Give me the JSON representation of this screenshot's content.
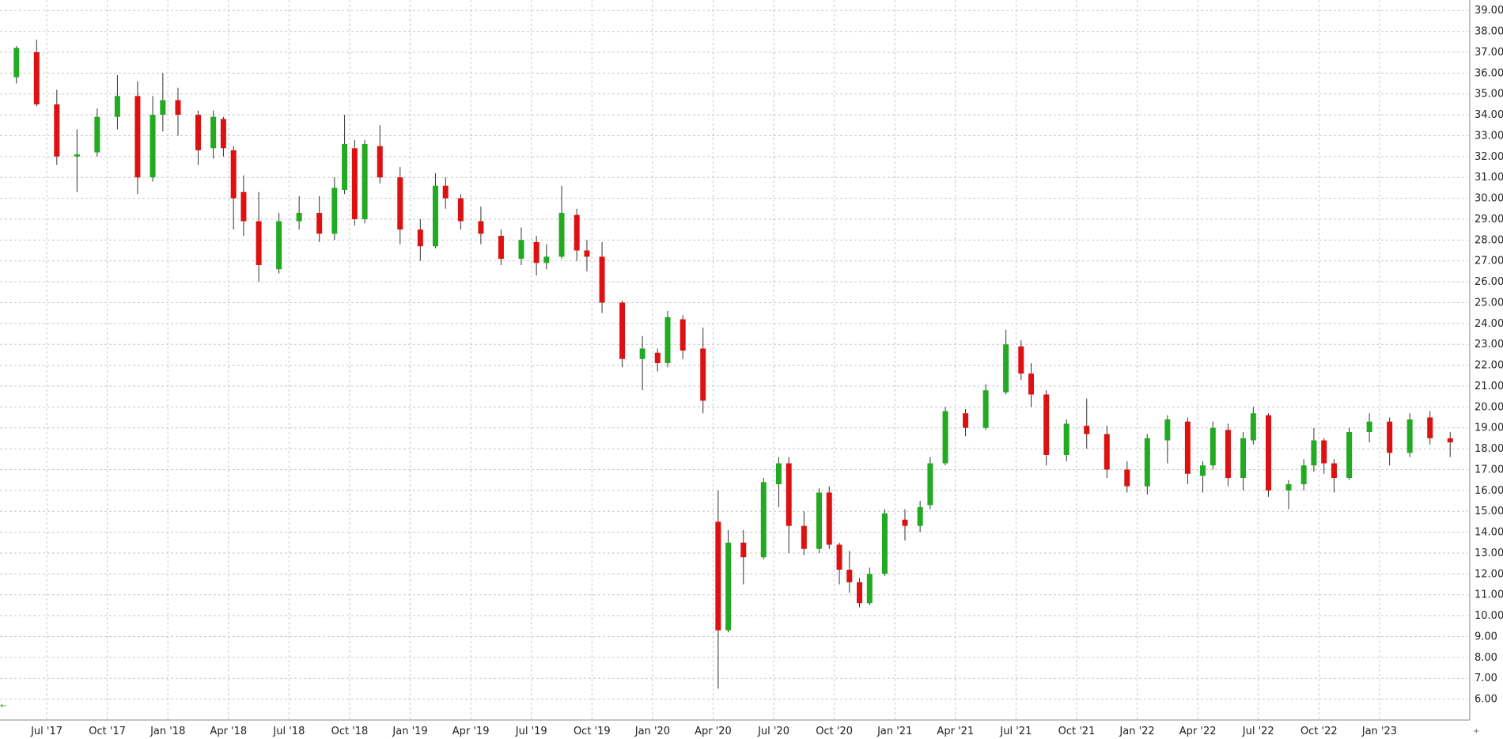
{
  "chart_data": {
    "type": "candlestick",
    "title": "",
    "xlabel": "",
    "ylabel": "",
    "ylim": [
      5.0,
      39.5
    ],
    "y_ticks": [
      6.0,
      7.0,
      8.0,
      9.0,
      10.0,
      11.0,
      12.0,
      13.0,
      14.0,
      15.0,
      16.0,
      17.0,
      18.0,
      19.0,
      20.0,
      21.0,
      22.0,
      23.0,
      24.0,
      25.0,
      26.0,
      27.0,
      28.0,
      29.0,
      30.0,
      31.0,
      32.0,
      33.0,
      34.0,
      35.0,
      36.0,
      37.0,
      38.0,
      39.0
    ],
    "x_start": "2017-05",
    "x_end": "2023-05",
    "x_ticks": [
      {
        "date": "2017-07",
        "label": "Jul '17"
      },
      {
        "date": "2017-10",
        "label": "Oct '17"
      },
      {
        "date": "2018-01",
        "label": "Jan '18"
      },
      {
        "date": "2018-04",
        "label": "Apr '18"
      },
      {
        "date": "2018-07",
        "label": "Jul '18"
      },
      {
        "date": "2018-10",
        "label": "Oct '18"
      },
      {
        "date": "2019-01",
        "label": "Jan '19"
      },
      {
        "date": "2019-04",
        "label": "Apr '19"
      },
      {
        "date": "2019-07",
        "label": "Jul '19"
      },
      {
        "date": "2019-10",
        "label": "Oct '19"
      },
      {
        "date": "2020-01",
        "label": "Jan '20"
      },
      {
        "date": "2020-04",
        "label": "Apr '20"
      },
      {
        "date": "2020-07",
        "label": "Jul '20"
      },
      {
        "date": "2020-10",
        "label": "Oct '20"
      },
      {
        "date": "2021-01",
        "label": "Jan '21"
      },
      {
        "date": "2021-04",
        "label": "Apr '21"
      },
      {
        "date": "2021-07",
        "label": "Jul '21"
      },
      {
        "date": "2021-10",
        "label": "Oct '21"
      },
      {
        "date": "2022-01",
        "label": "Jan '22"
      },
      {
        "date": "2022-04",
        "label": "Apr '22"
      },
      {
        "date": "2022-07",
        "label": "Jul '22"
      },
      {
        "date": "2022-10",
        "label": "Oct '22"
      },
      {
        "date": "2023-01",
        "label": "Jan '23"
      }
    ],
    "grid": true,
    "colors": {
      "up": "#22aa22",
      "down": "#dd1111",
      "wick": "#333333",
      "grid": "#c8c8c8"
    },
    "series": [
      {
        "values": [
          {
            "date": "2017-05",
            "open": 35.8,
            "high": 37.3,
            "low": 35.5,
            "close": 37.2
          },
          {
            "date": "2017-06",
            "open": 37.0,
            "high": 37.6,
            "low": 34.4,
            "close": 34.5
          },
          {
            "date": "2017-07",
            "open": 34.5,
            "high": 35.2,
            "low": 31.6,
            "close": 32.0
          },
          {
            "date": "2017-08",
            "open": 32.0,
            "high": 33.3,
            "low": 30.3,
            "close": 32.1
          },
          {
            "date": "2017-09",
            "open": 32.2,
            "high": 34.3,
            "low": 32.0,
            "close": 33.9
          },
          {
            "date": "2017-10",
            "open": 33.9,
            "high": 35.9,
            "low": 33.3,
            "close": 34.9
          },
          {
            "date": "2017-11",
            "open": 34.9,
            "high": 35.6,
            "low": 30.2,
            "close": 31.0
          },
          {
            "date": "2017-12",
            "open": 31.0,
            "high": 34.9,
            "low": 30.8,
            "close": 34.0
          },
          {
            "date": "2017-12",
            "open": 34.0,
            "high": 36.0,
            "low": 33.2,
            "close": 34.7
          },
          {
            "date": "2018-01",
            "open": 34.7,
            "high": 35.3,
            "low": 33.0,
            "close": 34.0
          },
          {
            "date": "2018-02",
            "open": 34.0,
            "high": 34.2,
            "low": 31.6,
            "close": 32.3
          },
          {
            "date": "2018-03",
            "open": 32.4,
            "high": 34.2,
            "low": 31.9,
            "close": 33.9
          },
          {
            "date": "2018-03",
            "open": 33.8,
            "high": 33.9,
            "low": 32.0,
            "close": 32.4
          },
          {
            "date": "2018-04",
            "open": 32.3,
            "high": 32.5,
            "low": 28.5,
            "close": 30.0
          },
          {
            "date": "2018-04",
            "open": 30.3,
            "high": 31.1,
            "low": 28.2,
            "close": 28.9
          },
          {
            "date": "2018-05",
            "open": 28.9,
            "high": 30.3,
            "low": 26.0,
            "close": 26.8
          },
          {
            "date": "2018-06",
            "open": 26.6,
            "high": 29.3,
            "low": 26.4,
            "close": 28.9
          },
          {
            "date": "2018-07",
            "open": 28.9,
            "high": 30.1,
            "low": 28.5,
            "close": 29.3
          },
          {
            "date": "2018-08",
            "open": 29.3,
            "high": 30.1,
            "low": 27.9,
            "close": 28.3
          },
          {
            "date": "2018-09",
            "open": 28.3,
            "high": 31.0,
            "low": 28.0,
            "close": 30.5
          },
          {
            "date": "2018-09",
            "open": 30.4,
            "high": 34.0,
            "low": 30.2,
            "close": 32.6
          },
          {
            "date": "2018-10",
            "open": 32.4,
            "high": 32.8,
            "low": 28.7,
            "close": 29.0
          },
          {
            "date": "2018-10",
            "open": 29.0,
            "high": 32.8,
            "low": 28.8,
            "close": 32.6
          },
          {
            "date": "2018-11",
            "open": 32.5,
            "high": 33.5,
            "low": 30.7,
            "close": 31.0
          },
          {
            "date": "2018-12",
            "open": 31.0,
            "high": 31.5,
            "low": 27.8,
            "close": 28.5
          },
          {
            "date": "2019-01",
            "open": 28.5,
            "high": 29.0,
            "low": 27.0,
            "close": 27.7
          },
          {
            "date": "2019-02",
            "open": 27.7,
            "high": 31.2,
            "low": 27.6,
            "close": 30.6
          },
          {
            "date": "2019-02",
            "open": 30.6,
            "high": 31.0,
            "low": 29.5,
            "close": 30.0
          },
          {
            "date": "2019-03",
            "open": 30.0,
            "high": 30.2,
            "low": 28.5,
            "close": 28.9
          },
          {
            "date": "2019-04",
            "open": 28.9,
            "high": 29.6,
            "low": 27.8,
            "close": 28.3
          },
          {
            "date": "2019-05",
            "open": 28.2,
            "high": 28.5,
            "low": 26.8,
            "close": 27.1
          },
          {
            "date": "2019-06",
            "open": 27.1,
            "high": 28.6,
            "low": 26.8,
            "close": 28.0
          },
          {
            "date": "2019-07",
            "open": 27.9,
            "high": 28.2,
            "low": 26.3,
            "close": 26.9
          },
          {
            "date": "2019-07",
            "open": 26.9,
            "high": 27.8,
            "low": 26.6,
            "close": 27.2
          },
          {
            "date": "2019-08",
            "open": 27.2,
            "high": 30.6,
            "low": 27.1,
            "close": 29.3
          },
          {
            "date": "2019-09",
            "open": 29.2,
            "high": 29.5,
            "low": 27.0,
            "close": 27.5
          },
          {
            "date": "2019-09",
            "open": 27.5,
            "high": 28.0,
            "low": 26.5,
            "close": 27.2
          },
          {
            "date": "2019-10",
            "open": 27.2,
            "high": 27.9,
            "low": 24.5,
            "close": 25.0
          },
          {
            "date": "2019-11",
            "open": 25.0,
            "high": 25.1,
            "low": 21.9,
            "close": 22.3
          },
          {
            "date": "2019-12",
            "open": 22.3,
            "high": 23.4,
            "low": 20.8,
            "close": 22.8
          },
          {
            "date": "2020-01",
            "open": 22.6,
            "high": 22.8,
            "low": 21.7,
            "close": 22.1
          },
          {
            "date": "2020-01",
            "open": 22.1,
            "high": 24.6,
            "low": 21.9,
            "close": 24.3
          },
          {
            "date": "2020-02",
            "open": 24.2,
            "high": 24.4,
            "low": 22.3,
            "close": 22.7
          },
          {
            "date": "2020-03",
            "open": 22.8,
            "high": 23.8,
            "low": 19.7,
            "close": 20.3
          },
          {
            "date": "2020-04",
            "open": 14.5,
            "high": 16.0,
            "low": 6.5,
            "close": 9.3
          },
          {
            "date": "2020-04",
            "open": 9.3,
            "high": 14.1,
            "low": 9.2,
            "close": 13.5
          },
          {
            "date": "2020-05",
            "open": 13.5,
            "high": 14.1,
            "low": 11.5,
            "close": 12.8
          },
          {
            "date": "2020-06",
            "open": 12.8,
            "high": 16.6,
            "low": 12.7,
            "close": 16.4
          },
          {
            "date": "2020-07",
            "open": 16.3,
            "high": 17.6,
            "low": 15.2,
            "close": 17.3
          },
          {
            "date": "2020-07",
            "open": 17.3,
            "high": 17.6,
            "low": 13.0,
            "close": 14.3
          },
          {
            "date": "2020-08",
            "open": 14.3,
            "high": 15.0,
            "low": 12.9,
            "close": 13.2
          },
          {
            "date": "2020-09",
            "open": 13.2,
            "high": 16.1,
            "low": 13.0,
            "close": 15.9
          },
          {
            "date": "2020-09",
            "open": 15.9,
            "high": 16.2,
            "low": 13.2,
            "close": 13.4
          },
          {
            "date": "2020-10",
            "open": 13.4,
            "high": 13.5,
            "low": 11.5,
            "close": 12.2
          },
          {
            "date": "2020-10",
            "open": 12.2,
            "high": 13.1,
            "low": 11.1,
            "close": 11.6
          },
          {
            "date": "2020-11",
            "open": 11.6,
            "high": 11.8,
            "low": 10.4,
            "close": 10.6
          },
          {
            "date": "2020-11",
            "open": 10.6,
            "high": 12.3,
            "low": 10.5,
            "close": 12.0
          },
          {
            "date": "2020-12",
            "open": 12.0,
            "high": 15.1,
            "low": 11.9,
            "close": 14.9
          },
          {
            "date": "2021-01",
            "open": 14.6,
            "high": 15.1,
            "low": 13.6,
            "close": 14.3
          },
          {
            "date": "2021-02",
            "open": 14.3,
            "high": 15.5,
            "low": 14.0,
            "close": 15.2
          },
          {
            "date": "2021-02",
            "open": 15.3,
            "high": 17.6,
            "low": 15.1,
            "close": 17.3
          },
          {
            "date": "2021-03",
            "open": 17.3,
            "high": 20.0,
            "low": 17.2,
            "close": 19.8
          },
          {
            "date": "2021-04",
            "open": 19.7,
            "high": 19.9,
            "low": 18.6,
            "close": 19.0
          },
          {
            "date": "2021-05",
            "open": 19.0,
            "high": 21.1,
            "low": 18.9,
            "close": 20.8
          },
          {
            "date": "2021-06",
            "open": 20.7,
            "high": 23.7,
            "low": 20.6,
            "close": 23.0
          },
          {
            "date": "2021-07",
            "open": 22.9,
            "high": 23.2,
            "low": 21.3,
            "close": 21.6
          },
          {
            "date": "2021-07",
            "open": 21.6,
            "high": 22.1,
            "low": 20.0,
            "close": 20.6
          },
          {
            "date": "2021-08",
            "open": 20.6,
            "high": 20.8,
            "low": 17.2,
            "close": 17.7
          },
          {
            "date": "2021-09",
            "open": 17.7,
            "high": 19.4,
            "low": 17.4,
            "close": 19.2
          },
          {
            "date": "2021-10",
            "open": 19.1,
            "high": 20.4,
            "low": 18.0,
            "close": 18.7
          },
          {
            "date": "2021-11",
            "open": 18.7,
            "high": 19.1,
            "low": 16.6,
            "close": 17.0
          },
          {
            "date": "2021-12",
            "open": 17.0,
            "high": 17.4,
            "low": 15.9,
            "close": 16.2
          },
          {
            "date": "2022-01",
            "open": 16.2,
            "high": 18.7,
            "low": 15.8,
            "close": 18.5
          },
          {
            "date": "2022-02",
            "open": 18.4,
            "high": 19.6,
            "low": 17.3,
            "close": 19.4
          },
          {
            "date": "2022-03",
            "open": 19.3,
            "high": 19.5,
            "low": 16.3,
            "close": 16.8
          },
          {
            "date": "2022-04",
            "open": 16.7,
            "high": 17.4,
            "low": 15.9,
            "close": 17.2
          },
          {
            "date": "2022-04",
            "open": 17.2,
            "high": 19.3,
            "low": 17.0,
            "close": 19.0
          },
          {
            "date": "2022-05",
            "open": 18.9,
            "high": 19.2,
            "low": 16.2,
            "close": 16.6
          },
          {
            "date": "2022-06",
            "open": 16.6,
            "high": 18.8,
            "low": 16.0,
            "close": 18.5
          },
          {
            "date": "2022-06",
            "open": 18.4,
            "high": 20.0,
            "low": 18.2,
            "close": 19.7
          },
          {
            "date": "2022-07",
            "open": 19.6,
            "high": 19.7,
            "low": 15.7,
            "close": 16.0
          },
          {
            "date": "2022-08",
            "open": 16.0,
            "high": 16.5,
            "low": 15.1,
            "close": 16.3
          },
          {
            "date": "2022-09",
            "open": 16.3,
            "high": 17.5,
            "low": 16.0,
            "close": 17.2
          },
          {
            "date": "2022-09",
            "open": 17.2,
            "high": 19.0,
            "low": 16.9,
            "close": 18.4
          },
          {
            "date": "2022-10",
            "open": 18.4,
            "high": 18.5,
            "low": 16.8,
            "close": 17.3
          },
          {
            "date": "2022-10",
            "open": 17.3,
            "high": 17.5,
            "low": 15.9,
            "close": 16.6
          },
          {
            "date": "2022-11",
            "open": 16.6,
            "high": 19.0,
            "low": 16.5,
            "close": 18.8
          },
          {
            "date": "2022-12",
            "open": 18.8,
            "high": 19.7,
            "low": 18.3,
            "close": 19.3
          },
          {
            "date": "2023-01",
            "open": 19.3,
            "high": 19.5,
            "low": 17.2,
            "close": 17.8
          },
          {
            "date": "2023-02",
            "open": 17.8,
            "high": 19.7,
            "low": 17.6,
            "close": 19.4
          },
          {
            "date": "2023-03",
            "open": 19.5,
            "high": 19.8,
            "low": 18.2,
            "close": 18.5
          },
          {
            "date": "2023-04",
            "open": 18.5,
            "high": 18.8,
            "low": 17.6,
            "close": 18.3
          }
        ]
      }
    ]
  }
}
